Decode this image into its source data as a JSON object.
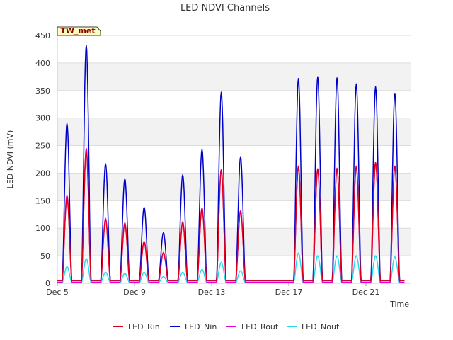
{
  "chart_data": {
    "type": "line",
    "title": "LED NDVI Channels",
    "xlabel": "Time",
    "ylabel": "LED NDVI (mV)",
    "site_label": "TW_met",
    "ylim": [
      0,
      450
    ],
    "xlim": [
      "2023-12-05",
      "2023-12-23"
    ],
    "x_ticks": [
      {
        "date": "2023-12-05",
        "label": "Dec 5"
      },
      {
        "date": "2023-12-09",
        "label": "Dec 9"
      },
      {
        "date": "2023-12-13",
        "label": "Dec 13"
      },
      {
        "date": "2023-12-17",
        "label": "Dec 17"
      },
      {
        "date": "2023-12-21",
        "label": "Dec 21"
      }
    ],
    "y_ticks": [
      0,
      50,
      100,
      150,
      200,
      250,
      300,
      350,
      400,
      450
    ],
    "grid": "horizontal",
    "background_bands": "alternating",
    "legend_position": "bottom",
    "daily_peaks": [
      {
        "date": "2023-12-05",
        "rin": 155,
        "nin": 290,
        "rout": 160,
        "nout": 30
      },
      {
        "date": "2023-12-06",
        "rin": 240,
        "nin": 432,
        "rout": 245,
        "nout": 45
      },
      {
        "date": "2023-12-07",
        "rin": 115,
        "nin": 217,
        "rout": 118,
        "nout": 20
      },
      {
        "date": "2023-12-08",
        "rin": 108,
        "nin": 190,
        "rout": 110,
        "nout": 18
      },
      {
        "date": "2023-12-09",
        "rin": 75,
        "nin": 138,
        "rout": 76,
        "nout": 20
      },
      {
        "date": "2023-12-10",
        "rin": 55,
        "nin": 92,
        "rout": 56,
        "nout": 12
      },
      {
        "date": "2023-12-11",
        "rin": 110,
        "nin": 197,
        "rout": 112,
        "nout": 20
      },
      {
        "date": "2023-12-12",
        "rin": 135,
        "nin": 243,
        "rout": 137,
        "nout": 25
      },
      {
        "date": "2023-12-13",
        "rin": 205,
        "nin": 347,
        "rout": 207,
        "nout": 38
      },
      {
        "date": "2023-12-14",
        "rin": 130,
        "nin": 230,
        "rout": 132,
        "nout": 23
      },
      {
        "date": "2023-12-17",
        "rin": 212,
        "nin": 372,
        "rout": 213,
        "nout": 55
      },
      {
        "date": "2023-12-18",
        "rin": 207,
        "nin": 375,
        "rout": 208,
        "nout": 50
      },
      {
        "date": "2023-12-19",
        "rin": 208,
        "nin": 373,
        "rout": 209,
        "nout": 50
      },
      {
        "date": "2023-12-20",
        "rin": 212,
        "nin": 362,
        "rout": 213,
        "nout": 50
      },
      {
        "date": "2023-12-21",
        "rin": 219,
        "nin": 357,
        "rout": 220,
        "nout": 50
      },
      {
        "date": "2023-12-22",
        "rin": 212,
        "nin": 345,
        "rout": 213,
        "nout": 48
      }
    ],
    "series": [
      {
        "name": "LED_Rin",
        "key": "rin",
        "color": "#e0001b",
        "night_value": 5
      },
      {
        "name": "LED_Nin",
        "key": "nin",
        "color": "#0000cc",
        "night_value": 5
      },
      {
        "name": "LED_Rout",
        "key": "rout",
        "color": "#e000e0",
        "night_value": 2
      },
      {
        "name": "LED_Nout",
        "key": "nout",
        "color": "#22ddee",
        "night_value": 1
      }
    ]
  }
}
